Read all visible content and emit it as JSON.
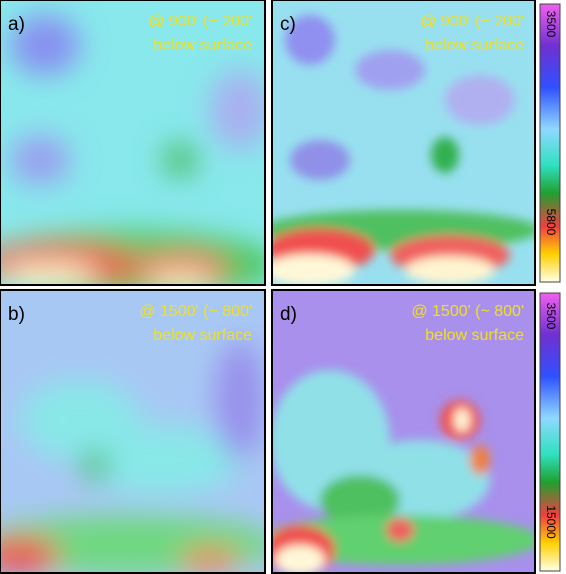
{
  "panels": [
    {
      "label": "a)",
      "line1": "@ 900' (~ 200'",
      "line2": "below surface"
    },
    {
      "label": "b)",
      "line1": "@ 1500' (~ 800'",
      "line2": "below surface"
    },
    {
      "label": "c)",
      "line1": "@ 900' (~ 200'",
      "line2": "below surface"
    },
    {
      "label": "d)",
      "line1": "@ 1500' (~ 800'",
      "line2": "below surface"
    }
  ],
  "colorbars": [
    {
      "top": "3500",
      "bottom": "5800"
    },
    {
      "top": "3500",
      "bottom": "15000"
    }
  ]
}
